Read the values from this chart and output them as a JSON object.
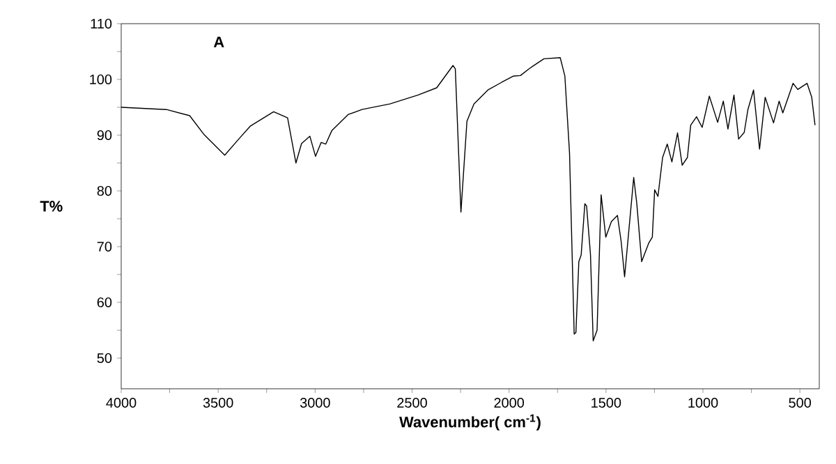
{
  "chart_data": {
    "type": "line",
    "xlabel": "Wavenumber( cm$^{-1}$)",
    "ylabel": "T%",
    "annotations": [
      "A"
    ],
    "xlim": [
      4000,
      400
    ],
    "ylim": [
      44.5,
      110
    ],
    "xticks": [
      4000,
      {
        "value": 3750,
        "label": null
      },
      3500,
      {
        "value": 3250,
        "label": null
      },
      3000,
      {
        "value": 2750,
        "label": null
      },
      2500,
      {
        "value": 2250,
        "label": null
      },
      2000,
      {
        "value": 1750,
        "label": null
      },
      1500,
      {
        "value": 1250,
        "label": null
      },
      1000,
      {
        "value": 750,
        "label": null
      },
      500
    ],
    "yticks": [
      50,
      {
        "value": 55,
        "label": null
      },
      60,
      {
        "value": 65,
        "label": null
      },
      70,
      {
        "value": 75,
        "label": null
      },
      80,
      {
        "value": 85,
        "label": null
      },
      90,
      {
        "value": 95,
        "label": null
      },
      100,
      {
        "value": 105,
        "label": null
      },
      110
    ],
    "marker": "none",
    "line_style": "solid",
    "series": [
      {
        "color": "#000000",
        "x": [
          4000,
          3767,
          3647,
          3575,
          3466,
          3394,
          3335,
          3214,
          3142,
          3099,
          3070,
          3027,
          2998,
          2969,
          2945,
          2914,
          2830,
          2758,
          2614,
          2469,
          2373,
          2289,
          2277,
          2248,
          2217,
          2181,
          2109,
          2037,
          1977,
          1941,
          1893,
          1820,
          1736,
          1712,
          1688,
          1664,
          1655,
          1640,
          1628,
          1609,
          1600,
          1580,
          1566,
          1546,
          1525,
          1501,
          1472,
          1441,
          1422,
          1404,
          1376,
          1357,
          1341,
          1316,
          1280,
          1261,
          1249,
          1232,
          1208,
          1184,
          1160,
          1131,
          1107,
          1080,
          1063,
          1033,
          1004,
          967,
          924,
          895,
          871,
          840,
          816,
          787,
          768,
          739,
          708,
          679,
          636,
          607,
          588,
          535,
          511,
          463,
          439,
          422
        ],
        "values": [
          95,
          94.6,
          93.5,
          90.2,
          86.4,
          89.3,
          91.6,
          94.2,
          93.1,
          85,
          88.5,
          89.8,
          86.2,
          88.7,
          88.4,
          90.8,
          93.7,
          94.6,
          95.6,
          97.2,
          98.5,
          102.5,
          101.9,
          76.2,
          92.5,
          95.6,
          98.1,
          99.5,
          100.6,
          100.7,
          102,
          103.7,
          103.9,
          100.6,
          86.8,
          54.3,
          54.6,
          67.3,
          68.5,
          77.7,
          77.3,
          68.6,
          53.1,
          55,
          79.3,
          71.7,
          74.5,
          75.6,
          71,
          64.6,
          75.2,
          82.4,
          77.7,
          67.3,
          70.6,
          71.7,
          80.2,
          79,
          86,
          88.4,
          85.2,
          90.4,
          84.6,
          86,
          91.8,
          93.3,
          91.4,
          97,
          92.3,
          96.1,
          91.1,
          97.2,
          89.3,
          90.5,
          94.6,
          98.1,
          87.5,
          96.8,
          92.2,
          96.1,
          94,
          99.3,
          98.2,
          99.3,
          96.8,
          91.8
        ]
      }
    ]
  }
}
